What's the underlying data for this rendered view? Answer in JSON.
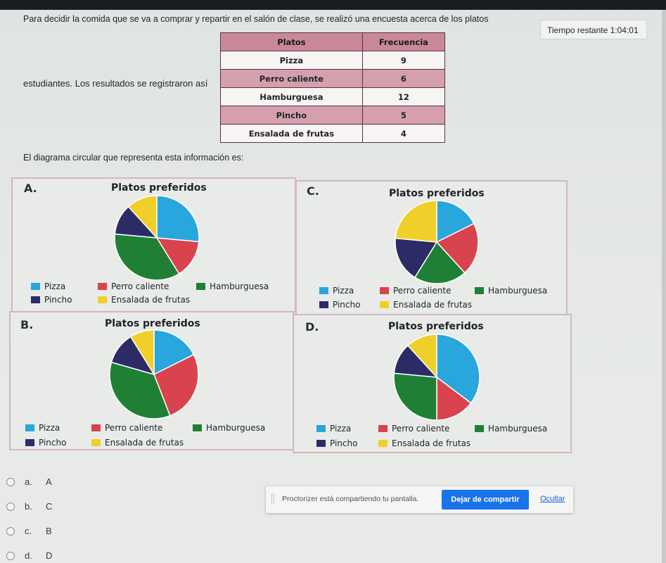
{
  "question": {
    "line1": "Para decidir la comida que se va a comprar y repartir en el salón de clase, se realizó una encuesta acerca de los platos",
    "line2": "estudiantes. Los resultados se registraron así",
    "line3": "El diagrama circular que representa esta información es:"
  },
  "timer": {
    "label": "Tiempo restante",
    "value": "1:04:01"
  },
  "table": {
    "headers": [
      "Platos",
      "Frecuencia"
    ],
    "rows": [
      {
        "dish": "Pizza",
        "freq": "9"
      },
      {
        "dish": "Perro caliente",
        "freq": "6"
      },
      {
        "dish": "Hamburguesa",
        "freq": "12"
      },
      {
        "dish": "Pincho",
        "freq": "5"
      },
      {
        "dish": "Ensalada de frutas",
        "freq": "4"
      }
    ]
  },
  "colors": {
    "pizza": "#29a6db",
    "perro": "#d9434d",
    "hamburguesa": "#1f8035",
    "pincho": "#2d2b66",
    "ensalada": "#f0cf2a"
  },
  "legend": {
    "pizza": "Pizza",
    "perro": "Perro caliente",
    "hamburguesa": "Hamburguesa",
    "pincho": "Pincho",
    "ensalada": "Ensalada de frutas"
  },
  "chart_data": [
    {
      "type": "pie",
      "letter": "A.",
      "title": "Platos preferidos",
      "slices": [
        {
          "key": "pizza",
          "label": "Pizza",
          "value": 9
        },
        {
          "key": "perro",
          "label": "Perro caliente",
          "value": 5
        },
        {
          "key": "hamburguesa",
          "label": "Hamburguesa",
          "value": 12
        },
        {
          "key": "pincho",
          "label": "Pincho",
          "value": 4
        },
        {
          "key": "ensalada",
          "label": "Ensalada de frutas",
          "value": 4
        }
      ]
    },
    {
      "type": "pie",
      "letter": "C.",
      "title": "Platos preferidos",
      "slices": [
        {
          "key": "pizza",
          "label": "Pizza",
          "value": 6
        },
        {
          "key": "perro",
          "label": "Perro caliente",
          "value": 7
        },
        {
          "key": "hamburguesa",
          "label": "Hamburguesa",
          "value": 7
        },
        {
          "key": "pincho",
          "label": "Pincho",
          "value": 6
        },
        {
          "key": "ensalada",
          "label": "Ensalada de frutas",
          "value": 8
        }
      ]
    },
    {
      "type": "pie",
      "letter": "B.",
      "title": "Platos preferidos",
      "slices": [
        {
          "key": "pizza",
          "label": "Pizza",
          "value": 6
        },
        {
          "key": "perro",
          "label": "Perro caliente",
          "value": 9
        },
        {
          "key": "hamburguesa",
          "label": "Hamburguesa",
          "value": 12
        },
        {
          "key": "pincho",
          "label": "Pincho",
          "value": 4
        },
        {
          "key": "ensalada",
          "label": "Ensalada de frutas",
          "value": 3
        }
      ]
    },
    {
      "type": "pie",
      "letter": "D.",
      "title": "Platos preferidos",
      "slices": [
        {
          "key": "pizza",
          "label": "Pizza",
          "value": 12
        },
        {
          "key": "perro",
          "label": "Perro caliente",
          "value": 5
        },
        {
          "key": "hamburguesa",
          "label": "Hamburguesa",
          "value": 9
        },
        {
          "key": "pincho",
          "label": "Pincho",
          "value": 4
        },
        {
          "key": "ensalada",
          "label": "Ensalada de frutas",
          "value": 4
        }
      ]
    }
  ],
  "options": [
    {
      "letter": "a.",
      "text": "A"
    },
    {
      "letter": "b.",
      "text": "C"
    },
    {
      "letter": "c.",
      "text": "B"
    },
    {
      "letter": "d.",
      "text": "D"
    }
  ],
  "share": {
    "message": "Proctorizer está compartiendo tu pantalla.",
    "stop": "Dejar de compartir",
    "hide": "Ocultar"
  }
}
